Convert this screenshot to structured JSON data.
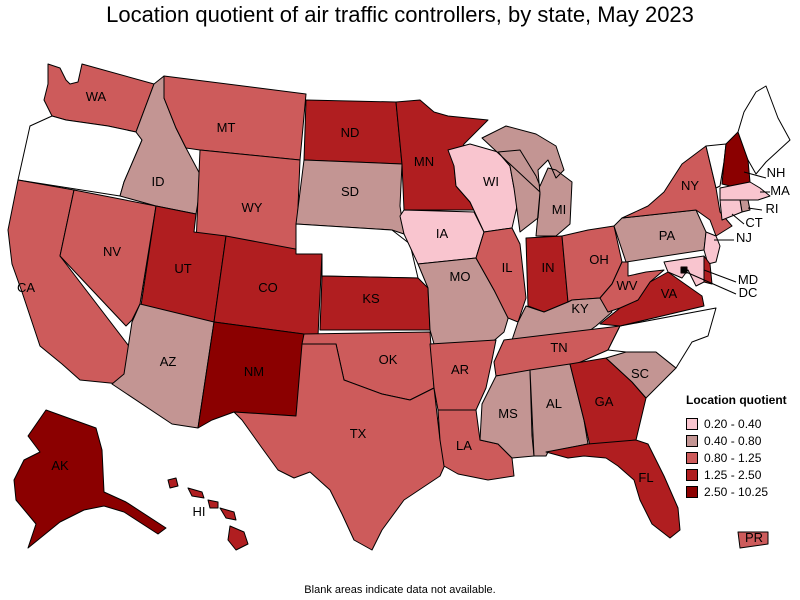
{
  "title": "Location quotient of air traffic controllers, by state, May 2023",
  "footnote": "Blank areas indicate data not available.",
  "legend": {
    "title": "Location quotient",
    "bins": [
      {
        "label": "0.20 - 0.40",
        "color": "#f9c5cf"
      },
      {
        "label": "0.40 - 0.80",
        "color": "#c39593"
      },
      {
        "label": "0.80 - 1.25",
        "color": "#cd5b5b"
      },
      {
        "label": "1.25 - 2.50",
        "color": "#b01e20"
      },
      {
        "label": "2.50 - 10.25",
        "color": "#8b0000"
      }
    ]
  },
  "states": {
    "WA": {
      "label": "WA",
      "bin": 2
    },
    "OR": {
      "label": "",
      "bin": null
    },
    "CA": {
      "label": "CA",
      "bin": 2
    },
    "NV": {
      "label": "NV",
      "bin": 2
    },
    "ID": {
      "label": "ID",
      "bin": 1
    },
    "MT": {
      "label": "MT",
      "bin": 2
    },
    "WY": {
      "label": "WY",
      "bin": 2
    },
    "UT": {
      "label": "UT",
      "bin": 3
    },
    "AZ": {
      "label": "AZ",
      "bin": 1
    },
    "CO": {
      "label": "CO",
      "bin": 3
    },
    "NM": {
      "label": "NM",
      "bin": 4
    },
    "ND": {
      "label": "ND",
      "bin": 3
    },
    "SD": {
      "label": "SD",
      "bin": 1
    },
    "NE": {
      "label": "",
      "bin": null
    },
    "KS": {
      "label": "KS",
      "bin": 3
    },
    "OK": {
      "label": "OK",
      "bin": 2
    },
    "TX": {
      "label": "TX",
      "bin": 2
    },
    "MN": {
      "label": "MN",
      "bin": 3
    },
    "IA": {
      "label": "IA",
      "bin": 0
    },
    "MO": {
      "label": "MO",
      "bin": 1
    },
    "AR": {
      "label": "AR",
      "bin": 2
    },
    "LA": {
      "label": "LA",
      "bin": 2
    },
    "WI": {
      "label": "WI",
      "bin": 0
    },
    "IL": {
      "label": "IL",
      "bin": 2
    },
    "MI": {
      "label": "MI",
      "bin": 1
    },
    "IN": {
      "label": "IN",
      "bin": 3
    },
    "OH": {
      "label": "OH",
      "bin": 2
    },
    "KY": {
      "label": "KY",
      "bin": 1
    },
    "TN": {
      "label": "TN",
      "bin": 2
    },
    "MS": {
      "label": "MS",
      "bin": 1
    },
    "AL": {
      "label": "AL",
      "bin": 1
    },
    "GA": {
      "label": "GA",
      "bin": 3
    },
    "FL": {
      "label": "FL",
      "bin": 3
    },
    "SC": {
      "label": "SC",
      "bin": 1
    },
    "NC": {
      "label": "",
      "bin": null
    },
    "VA": {
      "label": "VA",
      "bin": 3
    },
    "WV": {
      "label": "WV",
      "bin": 2
    },
    "PA": {
      "label": "PA",
      "bin": 1
    },
    "NY": {
      "label": "NY",
      "bin": 2
    },
    "VT": {
      "label": "",
      "bin": null
    },
    "NH": {
      "label": "NH",
      "bin": 4
    },
    "ME": {
      "label": "",
      "bin": null
    },
    "MA": {
      "label": "MA",
      "bin": 0
    },
    "RI": {
      "label": "RI",
      "bin": 1
    },
    "CT": {
      "label": "CT",
      "bin": 0
    },
    "NJ": {
      "label": "NJ",
      "bin": 0
    },
    "DE": {
      "label": "",
      "bin": 3
    },
    "MD": {
      "label": "MD",
      "bin": 0
    },
    "DC": {
      "label": "DC",
      "bin": 4
    },
    "AK": {
      "label": "AK",
      "bin": 4
    },
    "HI": {
      "label": "HI",
      "bin": 3
    },
    "PR": {
      "label": "PR",
      "bin": 2
    }
  }
}
